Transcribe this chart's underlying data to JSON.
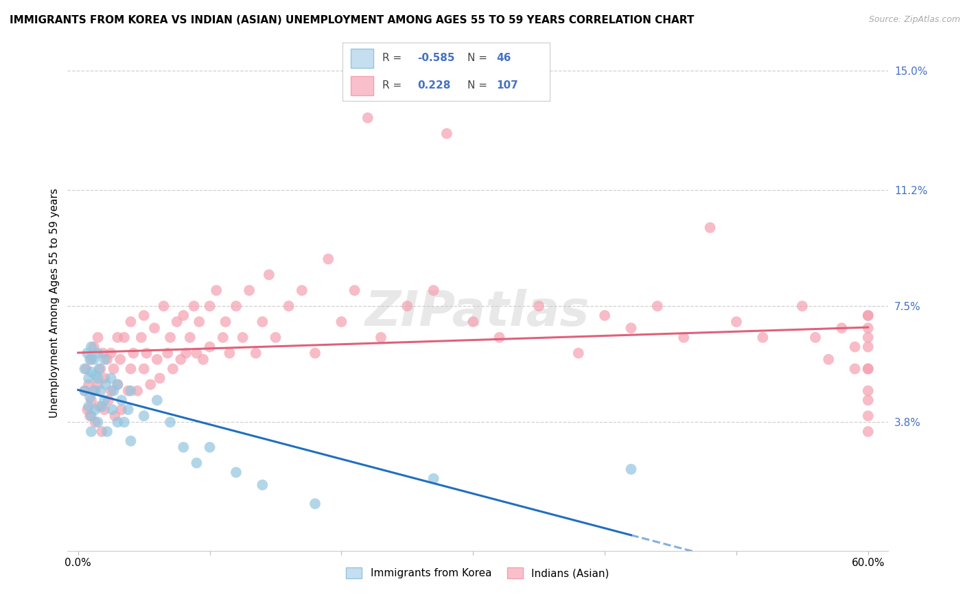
{
  "title": "IMMIGRANTS FROM KOREA VS INDIAN (ASIAN) UNEMPLOYMENT AMONG AGES 55 TO 59 YEARS CORRELATION CHART",
  "source": "Source: ZipAtlas.com",
  "ylabel": "Unemployment Among Ages 55 to 59 years",
  "xlim": [
    0.0,
    0.6
  ],
  "ylim": [
    0.0,
    0.15
  ],
  "xticklabels": [
    "0.0%",
    "",
    "",
    "",
    "",
    "",
    "60.0%"
  ],
  "yticks_right": [
    0.038,
    0.075,
    0.112,
    0.15
  ],
  "ytickslabels_right": [
    "3.8%",
    "7.5%",
    "11.2%",
    "15.0%"
  ],
  "background_color": "#ffffff",
  "grid_color": "#d0d0d0",
  "legend_R1": "-0.585",
  "legend_N1": "46",
  "legend_R2": "0.228",
  "legend_N2": "107",
  "legend_label1": "Immigrants from Korea",
  "legend_label2": "Indians (Asian)",
  "blue_scatter_color": "#92c5de",
  "pink_scatter_color": "#f4a0b0",
  "blue_line_color": "#1f6fbf",
  "pink_line_color": "#e0607a",
  "watermark_text": "ZIPatlas",
  "title_fontsize": 11,
  "source_fontsize": 9,
  "axis_label_fontsize": 11,
  "tick_fontsize": 11,
  "legend_fontsize": 11,
  "korea_x": [
    0.005,
    0.005,
    0.007,
    0.008,
    0.008,
    0.009,
    0.009,
    0.01,
    0.01,
    0.01,
    0.01,
    0.012,
    0.012,
    0.013,
    0.013,
    0.015,
    0.015,
    0.015,
    0.016,
    0.017,
    0.018,
    0.02,
    0.02,
    0.021,
    0.022,
    0.025,
    0.026,
    0.027,
    0.03,
    0.03,
    0.033,
    0.035,
    0.038,
    0.04,
    0.04,
    0.05,
    0.06,
    0.07,
    0.08,
    0.09,
    0.1,
    0.12,
    0.14,
    0.18,
    0.27,
    0.42
  ],
  "korea_y": [
    0.055,
    0.048,
    0.06,
    0.052,
    0.043,
    0.058,
    0.046,
    0.062,
    0.054,
    0.04,
    0.035,
    0.058,
    0.048,
    0.053,
    0.042,
    0.06,
    0.052,
    0.038,
    0.055,
    0.048,
    0.043,
    0.058,
    0.045,
    0.05,
    0.035,
    0.052,
    0.042,
    0.048,
    0.05,
    0.038,
    0.045,
    0.038,
    0.042,
    0.048,
    0.032,
    0.04,
    0.045,
    0.038,
    0.03,
    0.025,
    0.03,
    0.022,
    0.018,
    0.012,
    0.02,
    0.023
  ],
  "india_x": [
    0.005,
    0.006,
    0.007,
    0.008,
    0.009,
    0.01,
    0.01,
    0.012,
    0.013,
    0.013,
    0.015,
    0.015,
    0.016,
    0.017,
    0.018,
    0.019,
    0.02,
    0.02,
    0.022,
    0.023,
    0.025,
    0.025,
    0.027,
    0.028,
    0.03,
    0.03,
    0.032,
    0.033,
    0.035,
    0.038,
    0.04,
    0.04,
    0.042,
    0.045,
    0.048,
    0.05,
    0.05,
    0.052,
    0.055,
    0.058,
    0.06,
    0.062,
    0.065,
    0.068,
    0.07,
    0.072,
    0.075,
    0.078,
    0.08,
    0.082,
    0.085,
    0.088,
    0.09,
    0.092,
    0.095,
    0.1,
    0.1,
    0.105,
    0.11,
    0.112,
    0.115,
    0.12,
    0.125,
    0.13,
    0.135,
    0.14,
    0.145,
    0.15,
    0.16,
    0.17,
    0.18,
    0.19,
    0.2,
    0.21,
    0.22,
    0.23,
    0.25,
    0.27,
    0.28,
    0.3,
    0.32,
    0.35,
    0.38,
    0.4,
    0.42,
    0.44,
    0.46,
    0.48,
    0.5,
    0.52,
    0.55,
    0.56,
    0.57,
    0.58,
    0.59,
    0.59,
    0.6,
    0.6,
    0.6,
    0.6,
    0.6,
    0.6,
    0.6,
    0.6,
    0.6,
    0.6,
    0.6
  ],
  "india_y": [
    0.048,
    0.055,
    0.042,
    0.05,
    0.04,
    0.058,
    0.045,
    0.062,
    0.048,
    0.038,
    0.065,
    0.05,
    0.043,
    0.055,
    0.035,
    0.06,
    0.052,
    0.042,
    0.058,
    0.045,
    0.06,
    0.048,
    0.055,
    0.04,
    0.065,
    0.05,
    0.058,
    0.042,
    0.065,
    0.048,
    0.07,
    0.055,
    0.06,
    0.048,
    0.065,
    0.072,
    0.055,
    0.06,
    0.05,
    0.068,
    0.058,
    0.052,
    0.075,
    0.06,
    0.065,
    0.055,
    0.07,
    0.058,
    0.072,
    0.06,
    0.065,
    0.075,
    0.06,
    0.07,
    0.058,
    0.075,
    0.062,
    0.08,
    0.065,
    0.07,
    0.06,
    0.075,
    0.065,
    0.08,
    0.06,
    0.07,
    0.085,
    0.065,
    0.075,
    0.08,
    0.06,
    0.09,
    0.07,
    0.08,
    0.135,
    0.065,
    0.075,
    0.08,
    0.13,
    0.07,
    0.065,
    0.075,
    0.06,
    0.072,
    0.068,
    0.075,
    0.065,
    0.1,
    0.07,
    0.065,
    0.075,
    0.065,
    0.058,
    0.068,
    0.055,
    0.062,
    0.072,
    0.045,
    0.055,
    0.062,
    0.04,
    0.068,
    0.035,
    0.055,
    0.065,
    0.048,
    0.072
  ]
}
